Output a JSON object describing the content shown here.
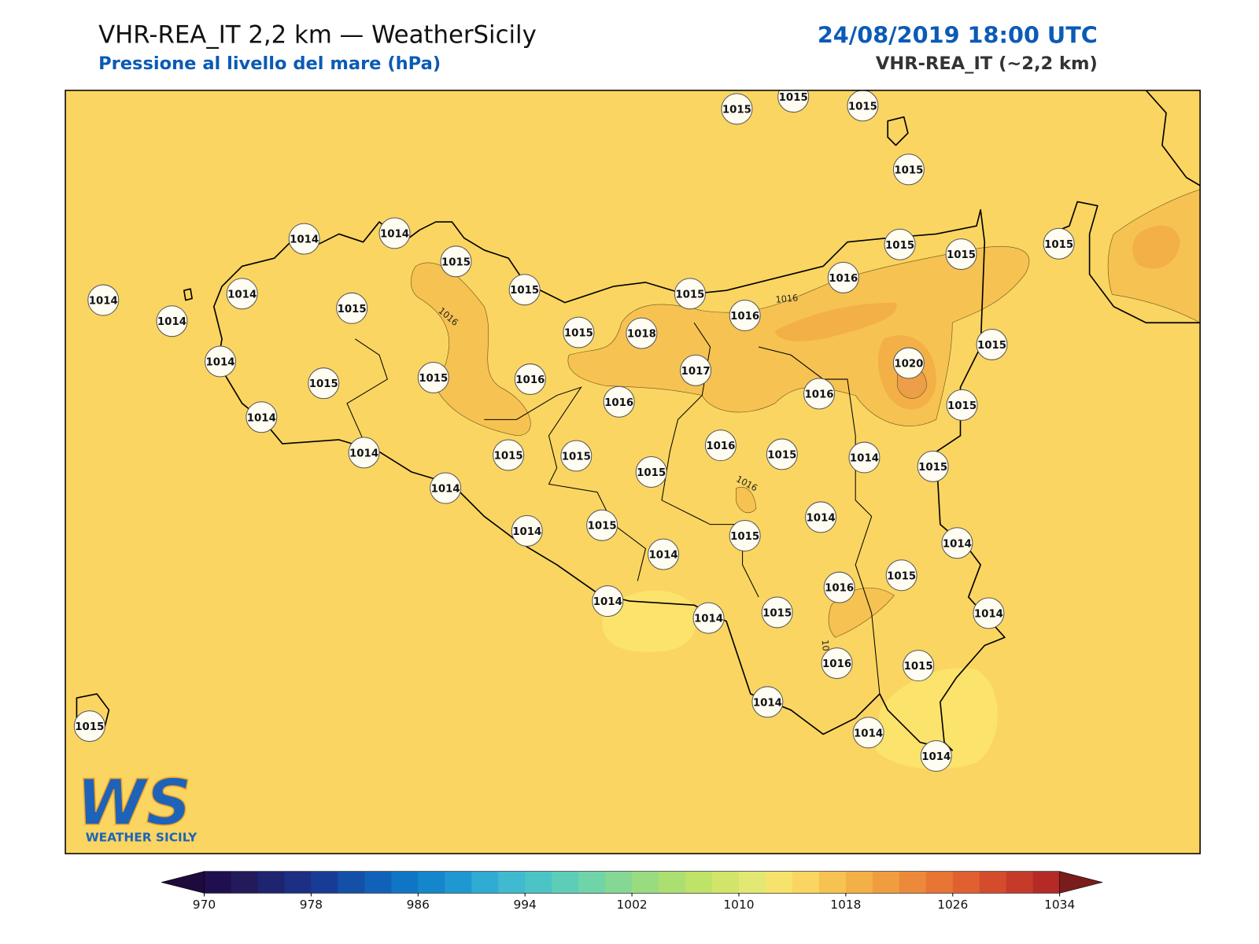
{
  "header": {
    "title": "VHR-REA_IT 2,2 km — WeatherSicily",
    "subtitle": "Pressione al livello del mare (hPa)",
    "date": "24/08/2019 18:00 UTC",
    "model": "VHR-REA_IT (~2,2 km)"
  },
  "map": {
    "background": "#fad561",
    "stations": [
      1015,
      1015,
      1015,
      1015,
      1014,
      1014,
      1015,
      1014,
      1014,
      1015,
      1015,
      1015,
      1015,
      1015,
      1015,
      1016,
      1016,
      1014,
      1015,
      1018,
      1015,
      1020,
      1014,
      1017,
      1015,
      1015,
      1016,
      1016,
      1016,
      1015,
      1014,
      1016,
      1014,
      1015,
      1015,
      1015,
      1014,
      1015,
      1015,
      1014,
      1014,
      1014,
      1015,
      1015,
      1014,
      1014,
      1015,
      1016,
      1014,
      1014,
      1015,
      1014,
      1016,
      1015,
      1015,
      1014,
      1014,
      1014
    ],
    "contour_labels": [
      "1016",
      "1016",
      "1016",
      "10"
    ]
  },
  "logo": {
    "text": "WS",
    "caption": "WEATHER SICILY"
  },
  "colorbar": {
    "lim": [
      970,
      1034
    ],
    "ticks": [
      970,
      978,
      986,
      994,
      1002,
      1010,
      1018,
      1026,
      1034
    ],
    "under_color": "#1e0a3c",
    "over_color": "#7a1c1c",
    "colors": [
      "#1f0f4e",
      "#231a5c",
      "#1f2470",
      "#1c2f84",
      "#183c96",
      "#1450a8",
      "#1062b8",
      "#0f75c4",
      "#1486cc",
      "#1f98d2",
      "#2fabd4",
      "#3fbad0",
      "#4cc4c6",
      "#5dcdb8",
      "#6fd4a8",
      "#85d893",
      "#99dc80",
      "#acdf72",
      "#bfe268",
      "#d2e56a",
      "#e3e874",
      "#f6e36c",
      "#fad561",
      "#f6c251",
      "#f3b046",
      "#f09d3f",
      "#ec893a",
      "#e77534",
      "#e0612f",
      "#d54c2c",
      "#c63a2a",
      "#b32a27"
    ]
  }
}
